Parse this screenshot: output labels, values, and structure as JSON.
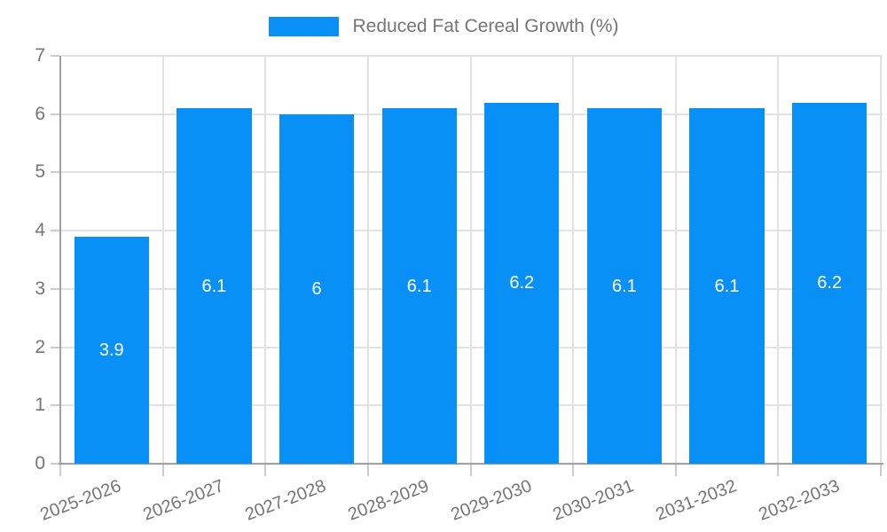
{
  "chart_data": {
    "type": "bar",
    "title": "Reduced Fat Cereal Growth (%)",
    "categories": [
      "2025-2026",
      "2026-2027",
      "2027-2028",
      "2028-2029",
      "2029-2030",
      "2030-2031",
      "2031-2032",
      "2032-2033"
    ],
    "values": [
      3.9,
      6.1,
      6,
      6.1,
      6.2,
      6.1,
      6.1,
      6.2
    ],
    "bar_labels": [
      "3.9",
      "6.1",
      "6",
      "6.1",
      "6.2",
      "6.1",
      "6.1",
      "6.2"
    ],
    "xlabel": "",
    "ylabel": "",
    "ylim": [
      0,
      7
    ],
    "y_ticks": [
      0,
      1,
      2,
      3,
      4,
      5,
      6,
      7
    ],
    "grid": true,
    "legend_position": "top",
    "colors": {
      "bar": "#0990f7",
      "bar_value_text": "#ffffff",
      "axis_line": "#a0a0a0",
      "grid_line": "#e2e2e2",
      "tick_line": "#cccccc",
      "tick_text": "#757575"
    }
  }
}
